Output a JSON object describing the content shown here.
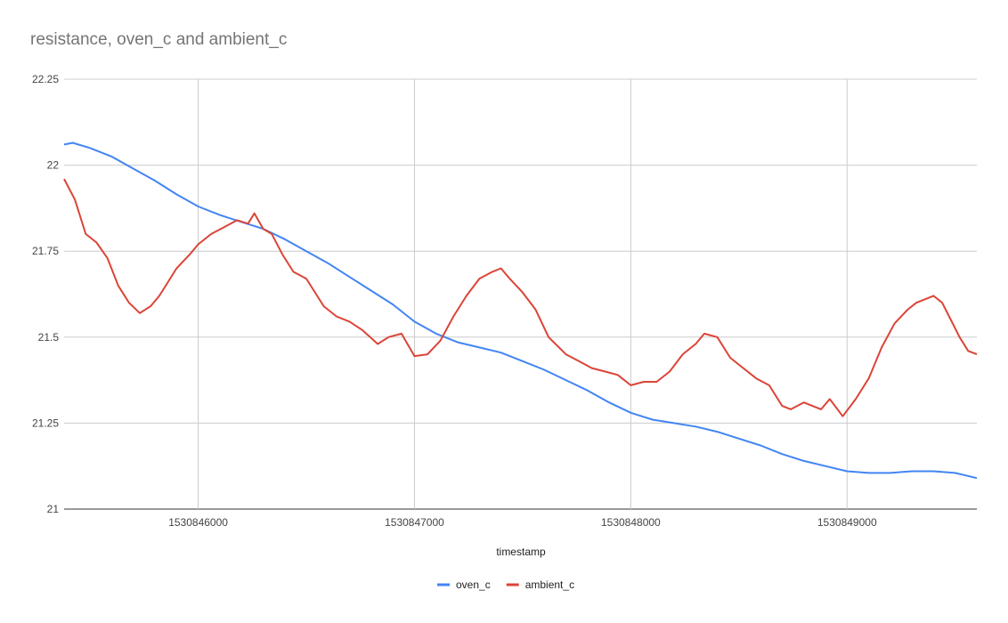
{
  "chart_data": {
    "type": "line",
    "title": "resistance, oven_c and ambient_c",
    "xlabel": "timestamp",
    "ylabel": "",
    "xlim": [
      1530845380,
      1530849600
    ],
    "ylim": [
      21,
      22.25
    ],
    "x_ticks": [
      1530846000,
      1530847000,
      1530848000,
      1530849000
    ],
    "x_tick_labels": [
      "1530846000",
      "1530847000",
      "1530848000",
      "1530849000"
    ],
    "y_ticks": [
      21,
      21.25,
      21.5,
      21.75,
      22,
      22.25
    ],
    "y_tick_labels": [
      "21",
      "21.25",
      "21.5",
      "21.75",
      "22",
      "22.25"
    ],
    "grid": true,
    "legend_position": "bottom",
    "series": [
      {
        "name": "oven_c",
        "color": "#4285f4",
        "x": [
          1530845380,
          1530845420,
          1530845500,
          1530845600,
          1530845700,
          1530845800,
          1530845900,
          1530846000,
          1530846100,
          1530846200,
          1530846300,
          1530846400,
          1530846500,
          1530846600,
          1530846700,
          1530846800,
          1530846900,
          1530847000,
          1530847100,
          1530847200,
          1530847300,
          1530847400,
          1530847500,
          1530847600,
          1530847700,
          1530847800,
          1530847900,
          1530848000,
          1530848100,
          1530848200,
          1530848300,
          1530848400,
          1530848500,
          1530848600,
          1530848700,
          1530848800,
          1530848900,
          1530849000,
          1530849100,
          1530849200,
          1530849300,
          1530849400,
          1530849500,
          1530849600
        ],
        "y": [
          22.06,
          22.065,
          22.05,
          22.025,
          21.99,
          21.955,
          21.915,
          21.88,
          21.855,
          21.835,
          21.815,
          21.785,
          21.75,
          21.715,
          21.675,
          21.635,
          21.595,
          21.545,
          21.51,
          21.485,
          21.47,
          21.455,
          21.43,
          21.405,
          21.375,
          21.345,
          21.31,
          21.28,
          21.26,
          21.25,
          21.24,
          21.225,
          21.205,
          21.185,
          21.16,
          21.14,
          21.125,
          21.11,
          21.105,
          21.105,
          21.11,
          21.11,
          21.105,
          21.09
        ]
      },
      {
        "name": "ambient_c",
        "color": "#db4437",
        "x": [
          1530845380,
          1530845430,
          1530845480,
          1530845530,
          1530845580,
          1530845630,
          1530845680,
          1530845730,
          1530845780,
          1530845820,
          1530845860,
          1530845900,
          1530845960,
          1530846000,
          1530846060,
          1530846120,
          1530846180,
          1530846230,
          1530846260,
          1530846300,
          1530846340,
          1530846390,
          1530846440,
          1530846500,
          1530846540,
          1530846580,
          1530846640,
          1530846700,
          1530846760,
          1530846830,
          1530846880,
          1530846940,
          1530847000,
          1530847060,
          1530847120,
          1530847180,
          1530847240,
          1530847300,
          1530847360,
          1530847400,
          1530847440,
          1530847500,
          1530847560,
          1530847620,
          1530847700,
          1530847760,
          1530847820,
          1530847880,
          1530847940,
          1530848000,
          1530848060,
          1530848120,
          1530848180,
          1530848240,
          1530848300,
          1530848340,
          1530848400,
          1530848460,
          1530848520,
          1530848580,
          1530848640,
          1530848700,
          1530848740,
          1530848800,
          1530848840,
          1530848880,
          1530848920,
          1530848980,
          1530849040,
          1530849100,
          1530849160,
          1530849220,
          1530849280,
          1530849320,
          1530849360,
          1530849400,
          1530849440,
          1530849480,
          1530849520,
          1530849560,
          1530849600
        ],
        "y": [
          21.96,
          21.9,
          21.8,
          21.775,
          21.73,
          21.65,
          21.6,
          21.57,
          21.59,
          21.62,
          21.66,
          21.7,
          21.74,
          21.77,
          21.8,
          21.82,
          21.84,
          21.83,
          21.86,
          21.815,
          21.8,
          21.74,
          21.69,
          21.67,
          21.63,
          21.59,
          21.56,
          21.545,
          21.52,
          21.48,
          21.5,
          21.51,
          21.445,
          21.45,
          21.49,
          21.56,
          21.62,
          21.67,
          21.69,
          21.7,
          21.67,
          21.63,
          21.58,
          21.5,
          21.45,
          21.43,
          21.41,
          21.4,
          21.39,
          21.36,
          21.37,
          21.37,
          21.4,
          21.45,
          21.48,
          21.51,
          21.5,
          21.44,
          21.41,
          21.38,
          21.36,
          21.3,
          21.29,
          21.31,
          21.3,
          21.29,
          21.32,
          21.27,
          21.32,
          21.38,
          21.47,
          21.54,
          21.58,
          21.6,
          21.61,
          21.62,
          21.6,
          21.55,
          21.5,
          21.46,
          21.45
        ]
      }
    ]
  }
}
